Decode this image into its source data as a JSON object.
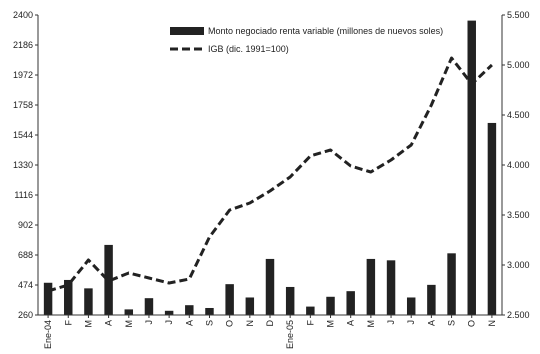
{
  "chart_data": {
    "type": "bar",
    "categories": [
      "Ene-04",
      "F",
      "M",
      "A",
      "M",
      "J",
      "J",
      "A",
      "S",
      "O",
      "N",
      "D",
      "Ene-05",
      "F",
      "M",
      "A",
      "M",
      "J",
      "J",
      "A",
      "S",
      "O",
      "N"
    ],
    "series": [
      {
        "name": "Monto negociado renta variable (millones de nuevos soles)",
        "type": "bar",
        "axis": "left",
        "values": [
          490,
          510,
          450,
          760,
          300,
          380,
          290,
          330,
          310,
          480,
          385,
          660,
          460,
          320,
          390,
          430,
          660,
          650,
          385,
          475,
          700,
          2360,
          1630
        ]
      },
      {
        "name": "IGB (dic. 1991=100)",
        "type": "line",
        "style": "dashed",
        "axis": "right",
        "values": [
          2740,
          2800,
          3050,
          2840,
          2920,
          2870,
          2820,
          2860,
          3280,
          3550,
          3620,
          3740,
          3880,
          4090,
          4150,
          3990,
          3930,
          4050,
          4200,
          4600,
          5070,
          4810,
          5000
        ]
      }
    ],
    "y_left": {
      "range": [
        260,
        2400
      ],
      "ticks": [
        "260",
        "474",
        "688",
        "902",
        "1116",
        "1330",
        "1544",
        "1758",
        "1972",
        "2186",
        "2400"
      ]
    },
    "y_right": {
      "range": [
        2500,
        5500
      ],
      "ticks": [
        "2.500",
        "3.000",
        "3.500",
        "4.000",
        "4.500",
        "5.000",
        "5.500"
      ]
    },
    "legend_position": "top-center",
    "grid": false,
    "colors": {
      "bar": "#222222",
      "line": "#222222"
    }
  }
}
